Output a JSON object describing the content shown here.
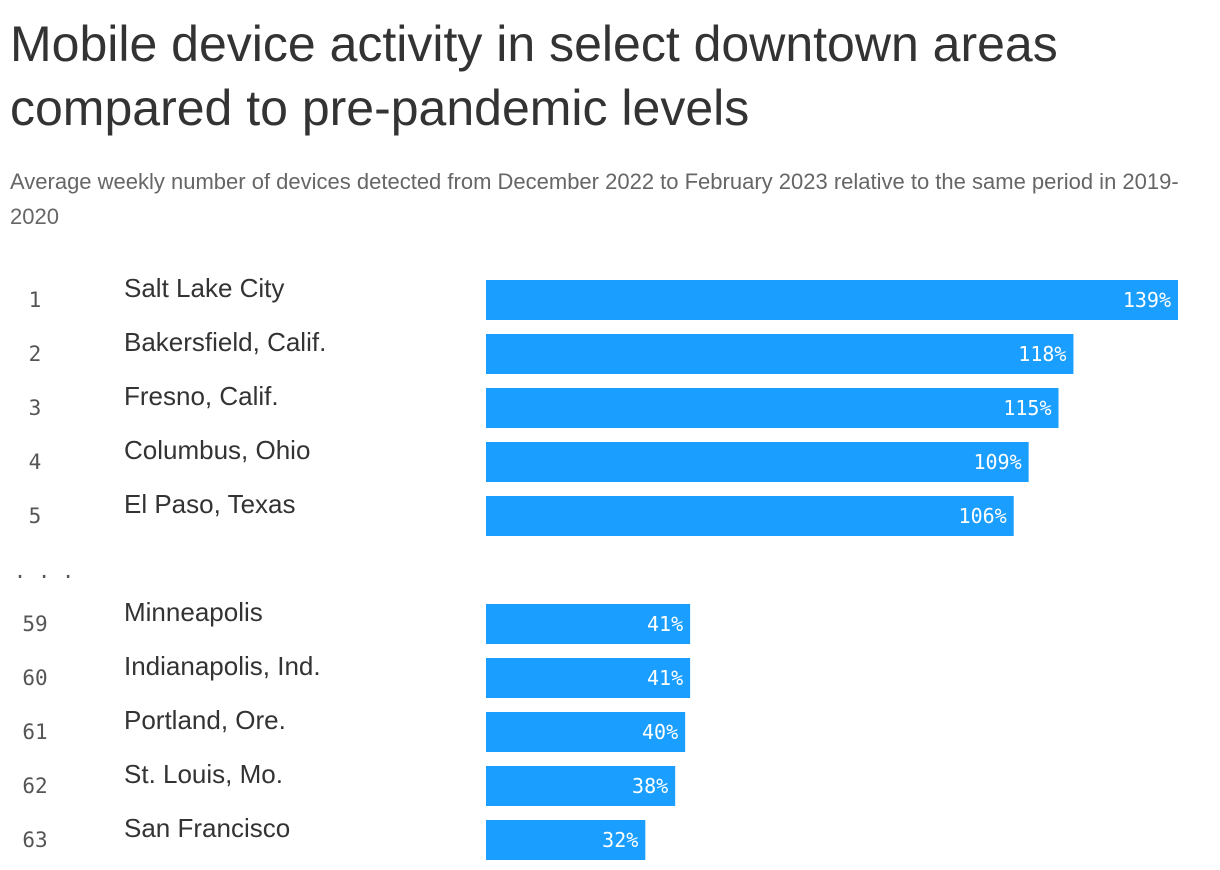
{
  "chart_data": {
    "type": "bar",
    "orientation": "horizontal",
    "title": "Mobile device activity in select downtown areas compared to pre-pandemic levels",
    "subtitle": "Average weekly number of devices detected from December 2022 to February 2023 relative to the same period in 2019-2020",
    "bar_color": "#1a9eff",
    "gap_marker": ". . .",
    "gap_after_index": 4,
    "xlim": [
      0,
      139
    ],
    "rows": [
      {
        "rank": "1",
        "category": "Salt Lake City",
        "value": 139,
        "label": "139%"
      },
      {
        "rank": "2",
        "category": "Bakersfield, Calif.",
        "value": 118,
        "label": "118%"
      },
      {
        "rank": "3",
        "category": "Fresno, Calif.",
        "value": 115,
        "label": "115%"
      },
      {
        "rank": "4",
        "category": "Columbus, Ohio",
        "value": 109,
        "label": "109%"
      },
      {
        "rank": "5",
        "category": "El Paso, Texas",
        "value": 106,
        "label": "106%"
      },
      {
        "rank": "59",
        "category": "Minneapolis",
        "value": 41,
        "label": "41%"
      },
      {
        "rank": "60",
        "category": "Indianapolis, Ind.",
        "value": 41,
        "label": "41%"
      },
      {
        "rank": "61",
        "category": "Portland, Ore.",
        "value": 40,
        "label": "40%"
      },
      {
        "rank": "62",
        "category": "St. Louis, Mo.",
        "value": 38,
        "label": "38%"
      },
      {
        "rank": "63",
        "category": "San Francisco",
        "value": 32,
        "label": "32%"
      }
    ]
  }
}
